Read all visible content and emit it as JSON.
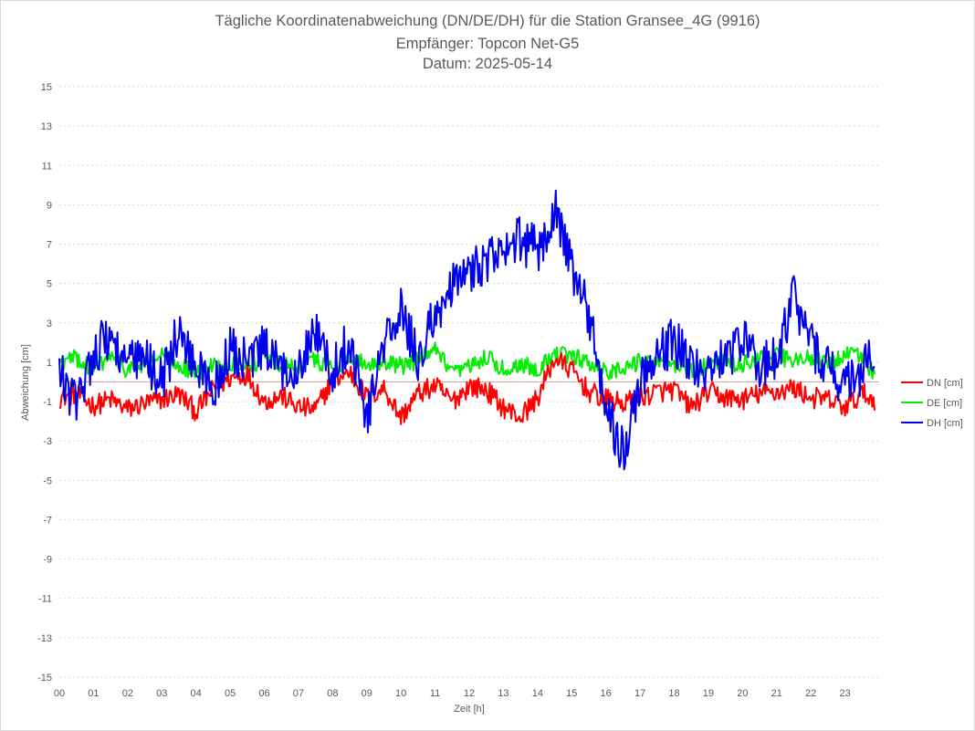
{
  "chart_data": {
    "type": "line",
    "title": "Tägliche Koordinatenabweichung (DN/DE/DH) für die Station Gransee_4G (9916)",
    "subtitle_1": "Empfänger: Topcon Net-G5",
    "subtitle_2": "Datum: 2025-05-14",
    "xlabel": "Zeit [h]",
    "ylabel": "Abweichung [cm]",
    "xlim": [
      0,
      24
    ],
    "ylim": [
      -15,
      15
    ],
    "x_ticks": [
      "00",
      "01",
      "02",
      "03",
      "04",
      "05",
      "06",
      "07",
      "08",
      "09",
      "10",
      "11",
      "12",
      "13",
      "14",
      "15",
      "16",
      "17",
      "18",
      "19",
      "20",
      "21",
      "22",
      "23"
    ],
    "y_ticks": [
      "15",
      "13",
      "11",
      "9",
      "7",
      "5",
      "3",
      "1",
      "-1",
      "-3",
      "-5",
      "-7",
      "-9",
      "-11",
      "-13",
      "-15"
    ],
    "grid": true,
    "legend_position": "right",
    "x": [
      0,
      0.5,
      1,
      1.5,
      2,
      2.5,
      3,
      3.5,
      4,
      4.5,
      5,
      5.5,
      6,
      6.5,
      7,
      7.5,
      8,
      8.5,
      9,
      9.5,
      10,
      10.5,
      11,
      11.5,
      12,
      12.5,
      13,
      13.5,
      14,
      14.5,
      15,
      15.5,
      16,
      16.5,
      17,
      17.5,
      18,
      18.5,
      19,
      19.5,
      20,
      20.5,
      21,
      21.5,
      22,
      22.5,
      23,
      23.5,
      23.85
    ],
    "series": [
      {
        "name": "DN [cm]",
        "color": "#ff0000",
        "values": [
          -0.8,
          -0.6,
          -1.2,
          -0.9,
          -1.4,
          -1.1,
          -0.9,
          -0.6,
          -1.5,
          -0.4,
          0.2,
          0.4,
          -1.0,
          -0.7,
          -1.3,
          -1.4,
          0.1,
          0.5,
          -0.8,
          -0.3,
          -1.8,
          -0.6,
          -0.2,
          -1.0,
          -0.2,
          -0.4,
          -1.3,
          -1.8,
          -0.8,
          1.2,
          0.6,
          -0.5,
          -0.9,
          -1.1,
          -0.8,
          -0.5,
          -0.4,
          -1.3,
          -0.5,
          -0.8,
          -0.9,
          -0.6,
          -0.5,
          -0.3,
          -0.8,
          -0.9,
          -1.3,
          -0.6,
          -0.9
        ]
      },
      {
        "name": "DE [cm]",
        "color": "#00ee00",
        "values": [
          1.0,
          1.2,
          0.6,
          1.3,
          0.6,
          0.9,
          1.3,
          0.9,
          0.4,
          0.8,
          1.0,
          0.8,
          1.2,
          0.9,
          0.8,
          1.1,
          0.7,
          1.2,
          0.9,
          1.1,
          0.8,
          1.1,
          1.6,
          0.4,
          0.7,
          1.3,
          0.6,
          0.9,
          0.7,
          1.4,
          1.3,
          1.0,
          0.5,
          0.7,
          1.0,
          1.2,
          0.8,
          0.6,
          0.9,
          1.0,
          0.9,
          1.2,
          1.3,
          1.1,
          1.2,
          0.9,
          1.4,
          1.3,
          0.4
        ]
      },
      {
        "name": "DH [cm]",
        "color": "#0000ee",
        "values": [
          0.5,
          -1.2,
          1.6,
          2.3,
          0.9,
          1.1,
          0.2,
          2.5,
          0.8,
          -0.4,
          1.6,
          0.9,
          1.7,
          0.4,
          1.0,
          2.6,
          0.5,
          2.3,
          -1.8,
          1.9,
          3.5,
          1.2,
          3.4,
          4.8,
          5.6,
          6.2,
          6.4,
          7.3,
          6.6,
          8.9,
          5.8,
          3.4,
          -1.2,
          -3.6,
          0.2,
          1.3,
          2.1,
          0.9,
          0.6,
          1.2,
          2.1,
          0.8,
          1.2,
          4.3,
          1.9,
          0.9,
          -0.3,
          0.6,
          1.8
        ]
      }
    ]
  }
}
